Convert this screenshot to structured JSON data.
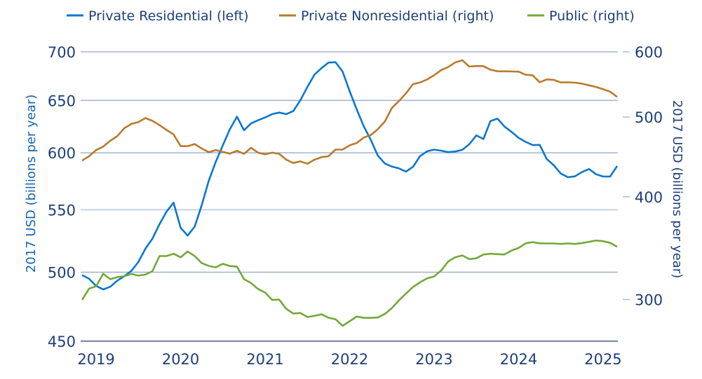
{
  "chart_data": {
    "type": "line",
    "title": "",
    "xlabel": "",
    "ylabel_left": "2017 USD (billions per year)",
    "ylabel_right": "2017 USD (billions per year)",
    "y_scale": "log",
    "ylim_left": [
      450,
      700
    ],
    "ylim_right": [
      267,
      600
    ],
    "yticks_left": [
      "700",
      "650",
      "600",
      "550",
      "500",
      "450"
    ],
    "yticks_right": [
      "600",
      "500",
      "400",
      "300"
    ],
    "xticks": [
      "2019",
      "2020",
      "2021",
      "2022",
      "2023",
      "2024",
      "2025"
    ],
    "grid": true,
    "legend_position": "top",
    "x": [
      "2018-11",
      "2018-12",
      "2019-01",
      "2019-02",
      "2019-03",
      "2019-04",
      "2019-05",
      "2019-06",
      "2019-07",
      "2019-08",
      "2019-09",
      "2019-10",
      "2019-11",
      "2019-12",
      "2020-01",
      "2020-02",
      "2020-03",
      "2020-04",
      "2020-05",
      "2020-06",
      "2020-07",
      "2020-08",
      "2020-09",
      "2020-10",
      "2020-11",
      "2020-12",
      "2021-01",
      "2021-02",
      "2021-03",
      "2021-04",
      "2021-05",
      "2021-06",
      "2021-07",
      "2021-08",
      "2021-09",
      "2021-10",
      "2021-11",
      "2021-12",
      "2022-01",
      "2022-02",
      "2022-03",
      "2022-04",
      "2022-05",
      "2022-06",
      "2022-07",
      "2022-08",
      "2022-09",
      "2022-10",
      "2022-11",
      "2022-12",
      "2023-01",
      "2023-02",
      "2023-03",
      "2023-04",
      "2023-05",
      "2023-06",
      "2023-07",
      "2023-08",
      "2023-09",
      "2023-10",
      "2023-11",
      "2023-12",
      "2024-01",
      "2024-02",
      "2024-03",
      "2024-04",
      "2024-05",
      "2024-06",
      "2024-07",
      "2024-08",
      "2024-09",
      "2024-10",
      "2024-11",
      "2024-12",
      "2025-01",
      "2025-02",
      "2025-03"
    ],
    "series": [
      {
        "name": "Private Residential (left)",
        "axis": "left",
        "color": "#0b78cc",
        "values": [
          497.8,
          495.0,
          489.6,
          487.0,
          489.0,
          493.5,
          496.9,
          501.0,
          507.8,
          518.3,
          526.3,
          538.0,
          548.5,
          556.0,
          535.0,
          528.8,
          536.0,
          554.0,
          575.0,
          592.0,
          607.0,
          622.0,
          634.0,
          621.0,
          627.5,
          630.6,
          633.2,
          636.5,
          638.0,
          636.5,
          639.5,
          650.0,
          663.5,
          676.0,
          682.8,
          688.6,
          689.0,
          679.3,
          659.3,
          641.2,
          624.9,
          612.1,
          597.5,
          590.3,
          587.5,
          585.9,
          583.0,
          587.3,
          596.9,
          601.4,
          602.9,
          602.0,
          600.6,
          601.2,
          602.7,
          607.9,
          616.1,
          612.8,
          629.8,
          632.1,
          624.5,
          619.4,
          613.8,
          610.1,
          607.1,
          607.3,
          594.3,
          588.6,
          581.3,
          578.0,
          578.8,
          582.6,
          585.3,
          580.7,
          578.6,
          578.6,
          588.0
        ]
      },
      {
        "name": "Private Nonresidential (right)",
        "axis": "right",
        "color": "#b97a2f",
        "values": [
          442.5,
          448.0,
          455.8,
          460.2,
          467.8,
          473.9,
          484.6,
          490.4,
          492.9,
          498.5,
          494.6,
          488.8,
          482.2,
          476.2,
          460.8,
          460.8,
          463.6,
          457.8,
          453.1,
          455.8,
          453.4,
          451.3,
          454.9,
          451.0,
          458.7,
          452.5,
          450.4,
          452.5,
          451.0,
          443.6,
          439.6,
          441.6,
          438.7,
          443.6,
          446.9,
          448.0,
          456.4,
          456.4,
          461.8,
          464.8,
          472.1,
          475.2,
          483.1,
          493.7,
          512.7,
          522.9,
          534.0,
          548.2,
          550.7,
          555.4,
          562.0,
          570.1,
          575.0,
          582.5,
          586.0,
          575.8,
          576.7,
          576.5,
          570.9,
          568.2,
          568.2,
          568.0,
          567.6,
          562.7,
          561.7,
          551.1,
          555.4,
          554.8,
          550.7,
          551.0,
          550.4,
          548.9,
          546.3,
          543.9,
          540.4,
          536.8,
          528.8
        ]
      },
      {
        "name": "Public (right)",
        "axis": "right",
        "color": "#73a83a",
        "values": [
          299.7,
          309.3,
          311.3,
          322.5,
          317.6,
          319.4,
          320.2,
          322.3,
          320.8,
          321.7,
          324.8,
          338.8,
          338.8,
          341.0,
          337.6,
          343.2,
          338.8,
          332.2,
          329.6,
          328.3,
          331.5,
          329.5,
          328.9,
          317.6,
          314.2,
          308.9,
          306.0,
          299.7,
          299.9,
          292.3,
          288.5,
          288.9,
          285.7,
          286.6,
          287.9,
          285.1,
          283.9,
          278.7,
          282.3,
          286.1,
          285.0,
          285.0,
          285.3,
          288.1,
          292.9,
          299.3,
          305.0,
          310.7,
          314.8,
          318.3,
          320.0,
          325.3,
          333.7,
          337.6,
          339.4,
          335.9,
          336.7,
          340.3,
          341.0,
          340.6,
          340.3,
          344.1,
          346.6,
          351.1,
          352.3,
          351.1,
          351.0,
          351.0,
          350.5,
          351.0,
          350.5,
          351.3,
          352.6,
          353.9,
          353.2,
          351.6,
          347.7
        ]
      }
    ]
  }
}
